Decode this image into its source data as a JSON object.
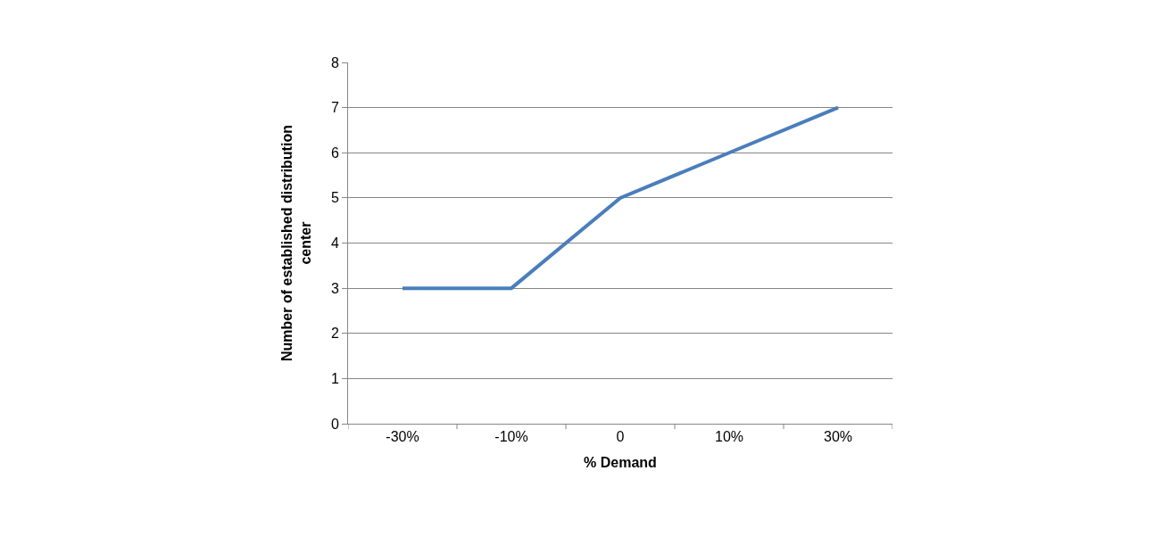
{
  "chart_data": {
    "type": "line",
    "xlabel": "% Demand",
    "ylabel": "Number of established distribution center",
    "categories": [
      "-30%",
      "-10%",
      "0",
      "10%",
      "30%"
    ],
    "series": [
      {
        "color": "#4a7ebb",
        "values": [
          3,
          3,
          5,
          6,
          7
        ]
      }
    ],
    "ylim": [
      0,
      8
    ],
    "yticks": [
      0,
      1,
      2,
      3,
      4,
      5,
      6,
      7,
      8
    ],
    "grid": "y",
    "marker": "none",
    "line_style": "solid"
  }
}
